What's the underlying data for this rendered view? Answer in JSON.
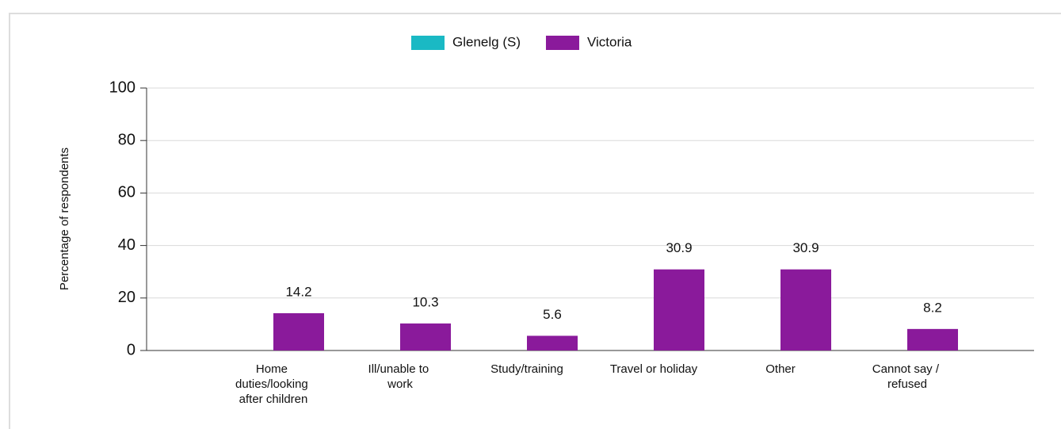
{
  "chart_data": {
    "type": "bar",
    "y_label": "Percentage of respondents",
    "categories": [
      "Home duties/looking after children",
      "Ill/unable to work",
      "Study/training",
      "Travel or holiday",
      "Other",
      "Cannot say / refused"
    ],
    "series": [
      {
        "name": "Glenelg (S)",
        "color": "#1ab9c4",
        "values": [
          null,
          null,
          null,
          null,
          null,
          null
        ]
      },
      {
        "name": "Victoria",
        "color": "#8a1a9b",
        "values": [
          14.2,
          10.3,
          5.6,
          30.9,
          30.9,
          8.2
        ]
      }
    ],
    "ylim": [
      0,
      100
    ],
    "yticks": [
      0,
      20,
      40,
      60,
      80,
      100
    ],
    "grid": true,
    "legend": "top"
  }
}
